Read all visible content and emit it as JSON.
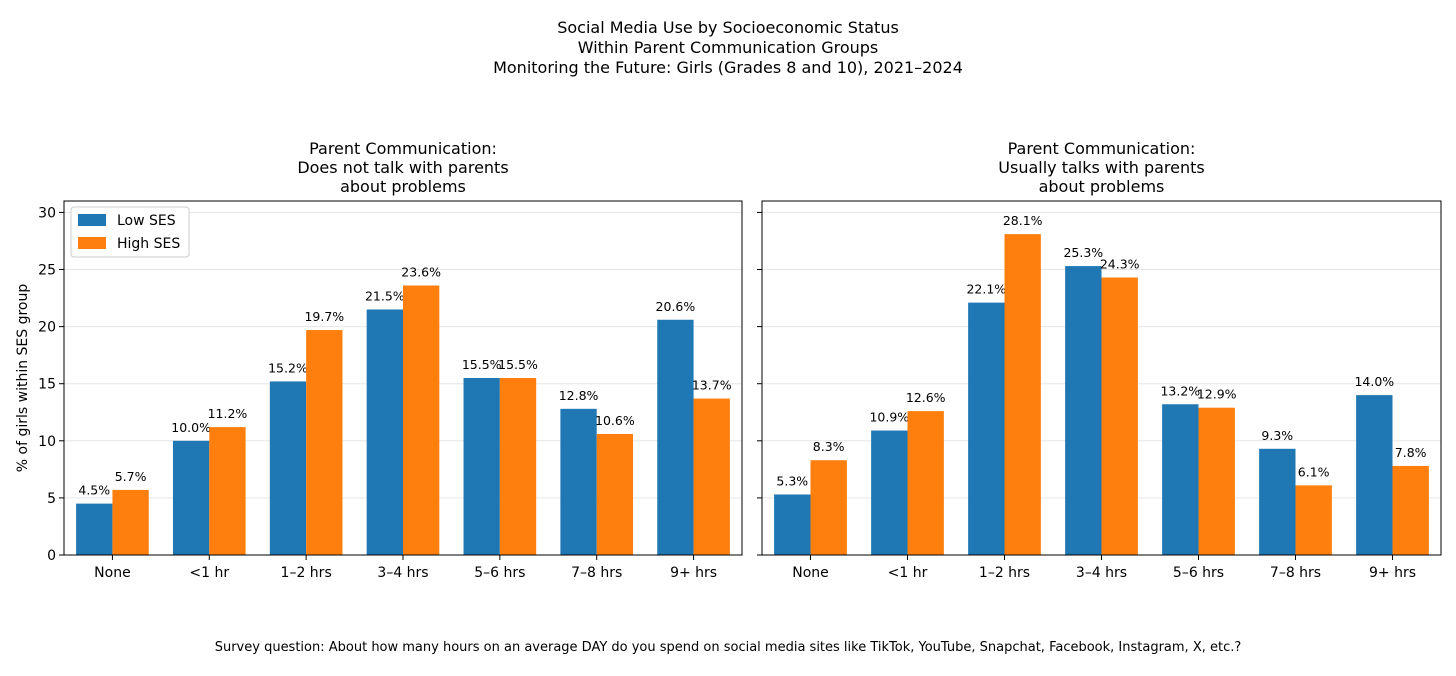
{
  "figure": {
    "title_lines": [
      "Social Media Use by Socioeconomic Status",
      "Within Parent Communication Groups",
      "Monitoring the Future: Girls (Grades 8 and 10), 2021–2024"
    ],
    "footnote": "Survey question: About how many hours on an average DAY do you spend on social media sites like TikTok, YouTube, Snapchat, Facebook, Instagram, X, etc.?"
  },
  "colors": {
    "low_ses": "#1f77b4",
    "high_ses": "#ff7f0e",
    "grid": "#e6e6e6"
  },
  "chart_data": [
    {
      "type": "bar",
      "title_lines": [
        "Parent Communication:",
        "Does not talk with parents",
        "about problems"
      ],
      "categories": [
        "None",
        "<1 hr",
        "1–2 hrs",
        "3–4 hrs",
        "5–6 hrs",
        "7–8 hrs",
        "9+ hrs"
      ],
      "series": [
        {
          "name": "Low SES",
          "values": [
            4.5,
            10.0,
            15.2,
            21.5,
            15.5,
            12.8,
            20.6
          ],
          "labels": [
            "4.5%",
            "10.0%",
            "15.2%",
            "21.5%",
            "15.5%",
            "12.8%",
            "20.6%"
          ]
        },
        {
          "name": "High SES",
          "values": [
            5.7,
            11.2,
            19.7,
            23.6,
            15.5,
            10.6,
            13.7
          ],
          "labels": [
            "5.7%",
            "11.2%",
            "19.7%",
            "23.6%",
            "15.5%",
            "10.6%",
            "13.7%"
          ]
        }
      ],
      "ylabel": "% of girls within SES group",
      "xlabel": "",
      "ylim": [
        0,
        31
      ],
      "yticks": [
        0,
        5,
        10,
        15,
        20,
        25,
        30
      ],
      "ytick_labels": [
        "0",
        "5",
        "10",
        "15",
        "20",
        "25",
        "30"
      ],
      "grid": "y",
      "legend": "top-left"
    },
    {
      "type": "bar",
      "title_lines": [
        "Parent Communication:",
        "Usually talks with parents",
        "about problems"
      ],
      "categories": [
        "None",
        "<1 hr",
        "1–2 hrs",
        "3–4 hrs",
        "5–6 hrs",
        "7–8 hrs",
        "9+ hrs"
      ],
      "series": [
        {
          "name": "Low SES",
          "values": [
            5.3,
            10.9,
            22.1,
            25.3,
            13.2,
            9.3,
            14.0
          ],
          "labels": [
            "5.3%",
            "10.9%",
            "22.1%",
            "25.3%",
            "13.2%",
            "9.3%",
            "14.0%"
          ]
        },
        {
          "name": "High SES",
          "values": [
            8.3,
            12.6,
            28.1,
            24.3,
            12.9,
            6.1,
            7.8
          ],
          "labels": [
            "8.3%",
            "12.6%",
            "28.1%",
            "24.3%",
            "12.9%",
            "6.1%",
            "7.8%"
          ]
        }
      ],
      "ylabel": "",
      "xlabel": "",
      "ylim": [
        0,
        31
      ],
      "yticks": [
        0,
        5,
        10,
        15,
        20,
        25,
        30
      ],
      "ytick_labels": [],
      "grid": "y",
      "legend": "none"
    }
  ]
}
